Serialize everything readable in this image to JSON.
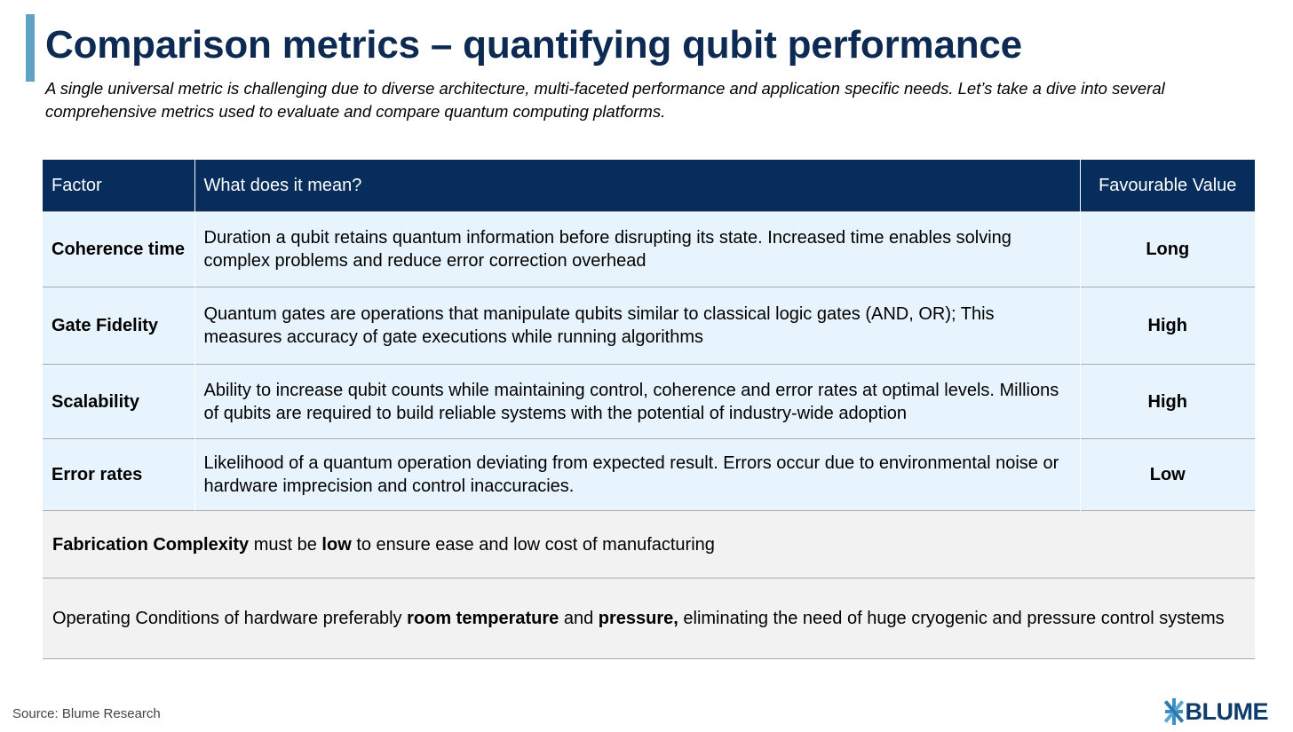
{
  "title": "Comparison metrics – quantifying qubit performance",
  "subtitle": "A single universal metric is challenging due to diverse architecture, multi-faceted performance and application specific needs. Let’s take a dive into several comprehensive metrics used to evaluate and compare quantum computing platforms.",
  "table": {
    "headers": [
      "Factor",
      "What does it mean?",
      "Favourable Value"
    ],
    "rows": [
      {
        "factor": "Coherence time",
        "meaning": "Duration a qubit retains quantum information before disrupting its state. Increased time enables solving complex problems and reduce error correction overhead",
        "value": "Long"
      },
      {
        "factor": "Gate Fidelity",
        "meaning": "Quantum gates are operations that manipulate qubits similar to classical logic gates (AND, OR); This measures accuracy of gate executions while running algorithms",
        "value": "High"
      },
      {
        "factor": "Scalability",
        "meaning": "Ability to increase qubit counts while maintaining control, coherence and error rates at optimal levels. Millions of qubits are required to build reliable systems with the potential of industry-wide adoption",
        "value": "High"
      },
      {
        "factor": "Error rates",
        "meaning": "Likelihood of a quantum operation deviating from expected result. Errors occur due to environmental noise or hardware imprecision and control inaccuracies.",
        "value": "Low"
      }
    ],
    "notes": [
      {
        "bold1": "Fabrication Complexity",
        "text1": " must be ",
        "bold2": "low",
        "text2": " to ensure ease and low cost of manufacturing"
      },
      {
        "text0": "Operating Conditions of hardware preferably ",
        "bold1": "room temperature",
        "text1": " and ",
        "bold2": "pressure,",
        "text2": " eliminating the need of huge cryogenic and pressure control systems"
      }
    ]
  },
  "footer": {
    "source": "Source: Blume Research",
    "logo_text": "BLUME",
    "logo_icon": "blume-logo-icon"
  },
  "colors": {
    "title": "#0c2a52",
    "header_bg": "#062d5c",
    "row_bg": "#e8f4fd",
    "note_bg": "#f2f2f2",
    "accent": "#5ea2c4"
  }
}
